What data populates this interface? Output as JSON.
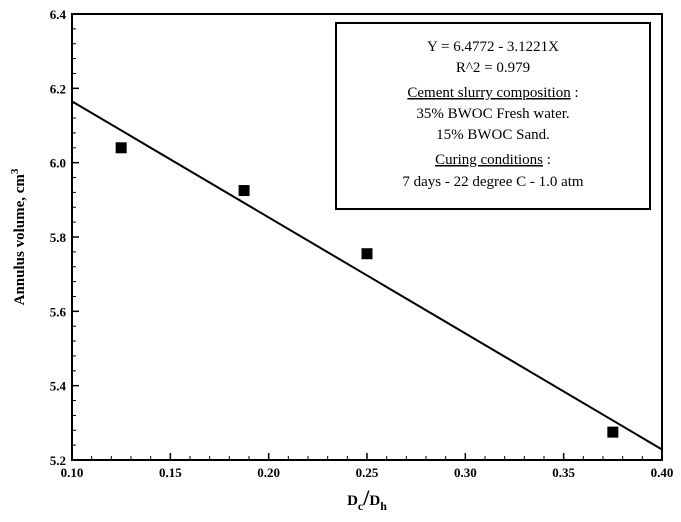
{
  "chart_data": {
    "type": "scatter",
    "xlabel": {
      "main": "D",
      "sub1": "c",
      "slash": "/",
      "main2": "D",
      "sub2": "h"
    },
    "ylabel": {
      "text": "Annulus volume, cm",
      "sup": "3"
    },
    "xlim": [
      0.1,
      0.4
    ],
    "ylim": [
      5.2,
      6.4
    ],
    "xticks": [
      "0.10",
      "0.15",
      "0.20",
      "0.25",
      "0.30",
      "0.35",
      "0.40"
    ],
    "yticks": [
      "5.2",
      "5.4",
      "5.6",
      "5.8",
      "6.0",
      "6.2",
      "6.4"
    ],
    "points": [
      {
        "x": 0.125,
        "y": 6.04
      },
      {
        "x": 0.1875,
        "y": 5.925
      },
      {
        "x": 0.25,
        "y": 5.755
      },
      {
        "x": 0.375,
        "y": 5.275
      }
    ],
    "fit": {
      "intercept": 6.4772,
      "slope": -3.1221
    },
    "annotation": {
      "equation": "Y = 6.4772 - 3.1221X",
      "r2": "R^2 = 0.979",
      "composition_heading": "Cement slurry composition",
      "composition_colon": " :",
      "composition_1": "35% BWOC  Fresh water.",
      "composition_2": "15% BWOC  Sand.",
      "curing_heading": "Curing conditions",
      "curing_colon": " :",
      "curing_1": "7 days  -  22 degree C  - 1.0 atm"
    }
  }
}
